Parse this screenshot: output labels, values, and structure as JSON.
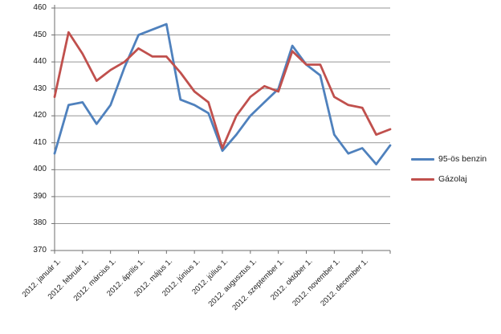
{
  "chart_data": {
    "type": "line",
    "title": "",
    "x_tick_labels": [
      "2012. január 1.",
      "2012. február 1.",
      "2012. március 1.",
      "2012. április 1.",
      "2012. május 1.",
      "2012. június 1.",
      "2012. július 1.",
      "2012. augusztus 1.",
      "2012. szeptember 1.",
      "2012. október 1.",
      "2012. november 1.",
      "2012. december 1."
    ],
    "y_tick_labels": [
      370,
      380,
      390,
      400,
      410,
      420,
      430,
      440,
      450,
      460
    ],
    "ylim": [
      370,
      460
    ],
    "grid": "horizontal",
    "legend_position": "right",
    "x_points_per_tick": 2,
    "series": [
      {
        "name": "95-ös benzin",
        "color": "#4F81BD",
        "values": [
          406,
          424,
          425,
          417,
          424,
          438,
          450,
          452,
          454,
          426,
          424,
          421,
          407,
          413,
          420,
          425,
          430,
          446,
          439,
          435,
          413,
          406,
          408,
          402,
          409
        ]
      },
      {
        "name": "Gázolaj",
        "color": "#C0504D",
        "values": [
          427,
          451,
          443,
          433,
          437,
          440,
          445,
          442,
          442,
          436,
          429,
          425,
          408,
          420,
          427,
          431,
          429,
          444,
          439,
          439,
          427,
          424,
          423,
          413,
          415
        ]
      }
    ]
  },
  "colors": {
    "background": "#FFFFFF",
    "gridline": "#969696",
    "axis": "#6e6e6e",
    "axis_text": "#1a1a1a",
    "benzin_line": "#4F81BD",
    "gazolaj_line": "#C0504D"
  }
}
